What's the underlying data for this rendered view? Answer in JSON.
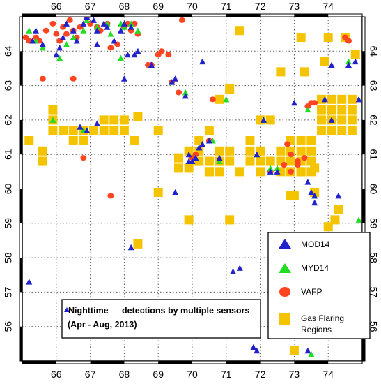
{
  "colors": {
    "mod14": "#2222cc",
    "myd14": "#22dd22",
    "vafp": "#ff4422",
    "gas": "#f5c400",
    "grid": "#555555",
    "frame": "#000000"
  },
  "chart_data": {
    "type": "scatter",
    "title": "",
    "xlabel": "",
    "ylabel": "",
    "xlim": [
      65,
      75
    ],
    "ylim": [
      55,
      65
    ],
    "x_ticks": [
      66,
      67,
      68,
      69,
      70,
      71,
      72,
      73,
      74
    ],
    "y_ticks": [
      56,
      57,
      58,
      59,
      60,
      61,
      62,
      63,
      64
    ],
    "grid": true,
    "legend_position": "bottom-right",
    "legend": [
      {
        "key": "mod14",
        "label": "MOD14",
        "marker": "triangle"
      },
      {
        "key": "myd14",
        "label": "MYD14",
        "marker": "triangle"
      },
      {
        "key": "vafp",
        "label": "VAFP",
        "marker": "ellipse"
      },
      {
        "key": "gas",
        "label": "Gas Flaring\nRegions",
        "marker": "square"
      }
    ],
    "annotation": {
      "line1": "Nighttime",
      "line1b": "detections by multiple sensors",
      "line2": "(Apr - Aug, 2013)"
    },
    "series": [
      {
        "name": "MOD14",
        "key": "mod14",
        "marker": "triangle",
        "x": [
          65.3,
          65.4,
          65.6,
          66.0,
          66.1,
          66.2,
          66.3,
          66.5,
          66.6,
          66.8,
          66.9,
          67.1,
          67.2,
          67.4,
          67.5,
          67.2,
          67.7,
          67.9,
          68.0,
          68.1,
          68.2,
          68.3,
          68.4,
          68.8,
          69.4,
          69.5,
          69.8,
          69.9,
          70.1,
          70.2,
          70.3,
          70.5,
          69.5,
          68.2,
          66.9,
          66.7,
          67.2,
          69.9,
          70.0,
          70.3,
          70.8,
          71.2,
          71.4,
          71.9,
          72.1,
          72.3,
          72.5,
          73.1,
          73.4,
          73.5,
          73.6,
          73.9,
          74.1,
          74.3,
          74.6,
          74.8,
          74.9,
          71.8,
          71.9,
          73.4,
          73.6,
          73.0,
          65.2,
          74.1,
          68.0
        ],
        "y": [
          64.3,
          64.6,
          64.2,
          63.9,
          64.1,
          64.4,
          64.8,
          64.6,
          64.3,
          64.8,
          65.0,
          64.9,
          64.6,
          64.8,
          64.7,
          64.2,
          64.3,
          64.6,
          64.8,
          63.9,
          64.7,
          63.9,
          64.0,
          63.6,
          63.1,
          63.2,
          62.7,
          60.8,
          60.9,
          61.2,
          63.7,
          61.4,
          59.9,
          58.3,
          61.7,
          61.8,
          61.9,
          61.0,
          60.8,
          61.3,
          60.9,
          57.6,
          57.7,
          61.0,
          62.0,
          60.5,
          60.5,
          56.3,
          60.2,
          59.9,
          59.8,
          62.6,
          62.0,
          59.8,
          63.6,
          63.7,
          62.6,
          55.4,
          55.3,
          55.3,
          59.6,
          62.5,
          57.3,
          63.6,
          63.2
        ]
      },
      {
        "name": "MYD14",
        "key": "myd14",
        "marker": "triangle",
        "x": [
          65.2,
          65.4,
          65.6,
          66.1,
          66.3,
          66.5,
          66.8,
          66.9,
          67.2,
          67.5,
          67.6,
          67.9,
          68.0,
          68.2,
          68.4,
          67.9,
          69.4,
          69.8,
          70.1,
          70.2,
          70.3,
          70.6,
          70.8,
          71.0,
          71.9,
          72.1,
          72.3,
          72.5,
          73.4,
          73.5,
          73.6,
          74.6,
          74.9,
          69.9,
          66.8,
          65.9,
          73.5
        ],
        "y": [
          64.6,
          64.3,
          64.1,
          63.8,
          64.2,
          64.4,
          64.6,
          64.9,
          64.7,
          64.8,
          64.5,
          64.8,
          64.7,
          64.8,
          64.6,
          63.8,
          63.1,
          62.8,
          60.9,
          61.2,
          63.7,
          61.4,
          60.8,
          62.6,
          61.0,
          62.0,
          60.6,
          60.6,
          62.3,
          59.9,
          59.8,
          63.7,
          59.1,
          60.8,
          61.7,
          62.0,
          55.2
        ]
      },
      {
        "name": "VAFP",
        "key": "vafp",
        "marker": "ellipse",
        "x": [
          65.1,
          65.2,
          65.4,
          65.5,
          65.7,
          65.9,
          66.0,
          66.1,
          66.2,
          66.3,
          66.4,
          66.5,
          66.6,
          66.7,
          66.9,
          67.0,
          67.2,
          67.3,
          67.5,
          67.6,
          67.8,
          68.0,
          68.1,
          68.2,
          68.3,
          68.4,
          68.7,
          68.8,
          69.0,
          69.1,
          69.3,
          69.4,
          69.6,
          69.7,
          70.0,
          70.1,
          70.5,
          70.6,
          72.8,
          72.9,
          73.1,
          73.3,
          73.4,
          73.5,
          73.6,
          74.5,
          74.6,
          73.9,
          66.8,
          67.6,
          65.6,
          66.5,
          72.9,
          72.3,
          72.7,
          73.1
        ],
        "y": [
          64.4,
          64.3,
          64.4,
          64.3,
          64.6,
          64.8,
          64.5,
          64.3,
          64.7,
          64.5,
          64.9,
          64.6,
          64.4,
          64.7,
          65.0,
          64.8,
          64.7,
          64.6,
          64.8,
          64.1,
          64.2,
          64.7,
          64.8,
          64.6,
          64.8,
          64.5,
          63.6,
          63.6,
          63.9,
          64.0,
          63.9,
          63.1,
          62.8,
          64.9,
          60.9,
          61.0,
          61.4,
          62.6,
          61.3,
          61.0,
          60.8,
          60.9,
          62.4,
          62.5,
          62.5,
          64.4,
          64.3,
          56.1,
          60.9,
          59.8,
          63.2,
          63.2,
          60.5,
          60.5,
          60.7,
          60.7
        ]
      },
      {
        "name": "Gas Flaring Regions",
        "key": "gas",
        "marker": "square",
        "x": [
          65.2,
          65.6,
          65.6,
          65.9,
          65.9,
          65.9,
          66.2,
          66.5,
          66.5,
          66.8,
          66.8,
          67.1,
          67.4,
          67.4,
          67.7,
          67.7,
          68.0,
          68.0,
          68.3,
          68.4,
          69.0,
          69.6,
          69.6,
          69.9,
          70.2,
          70.2,
          70.5,
          70.5,
          70.8,
          70.8,
          71.1,
          71.1,
          71.4,
          71.7,
          72.0,
          72.0,
          72.3,
          72.6,
          72.6,
          72.9,
          72.9,
          73.2,
          73.2,
          73.2,
          73.5,
          73.5,
          73.8,
          73.8,
          74.1,
          74.1,
          74.4,
          74.4,
          74.7,
          74.7,
          74.7,
          73.8,
          73.8,
          74.1,
          74.1,
          74.4,
          74.4,
          74.7,
          72.9,
          73.2,
          73.5,
          72.6,
          72.9,
          73.2,
          73.5,
          70.5,
          70.2,
          71.7,
          71.1,
          72.0,
          72.3,
          72.0,
          70.8,
          71.4,
          69.9,
          70.8,
          70.5,
          71.7,
          69.0,
          68.4,
          74.0,
          74.0,
          74.3,
          74.5,
          73.9,
          73.6,
          74.2,
          74.8,
          72.6,
          73.3,
          73.0,
          72.9,
          73.0,
          71.1,
          69.9,
          73.2,
          73.6
        ],
        "y": [
          61.4,
          61.1,
          60.8,
          62.3,
          62.0,
          61.7,
          61.7,
          61.4,
          61.7,
          61.7,
          61.4,
          61.7,
          62.0,
          61.7,
          61.7,
          62.0,
          61.7,
          62.0,
          61.4,
          62.1,
          61.7,
          60.9,
          60.6,
          60.6,
          61.1,
          60.8,
          60.8,
          60.5,
          61.1,
          60.8,
          61.1,
          60.8,
          60.5,
          60.8,
          61.1,
          60.8,
          60.8,
          61.1,
          60.8,
          61.1,
          60.8,
          61.1,
          60.8,
          60.5,
          61.1,
          60.8,
          62.6,
          62.3,
          62.6,
          62.3,
          62.6,
          62.3,
          62.6,
          62.3,
          62.0,
          62.0,
          61.7,
          62.0,
          61.7,
          62.0,
          61.7,
          61.7,
          61.4,
          61.4,
          61.4,
          60.5,
          60.5,
          60.5,
          60.5,
          61.7,
          61.4,
          61.4,
          62.9,
          62.0,
          62.0,
          60.5,
          62.6,
          64.6,
          61.1,
          60.5,
          60.5,
          61.1,
          59.9,
          58.4,
          64.4,
          58.9,
          59.4,
          64.4,
          63.7,
          59.9,
          59.1,
          63.9,
          63.4,
          63.4,
          55.3,
          59.8,
          59.8,
          59.1,
          59.1,
          64.4,
          60.6
        ]
      }
    ]
  }
}
